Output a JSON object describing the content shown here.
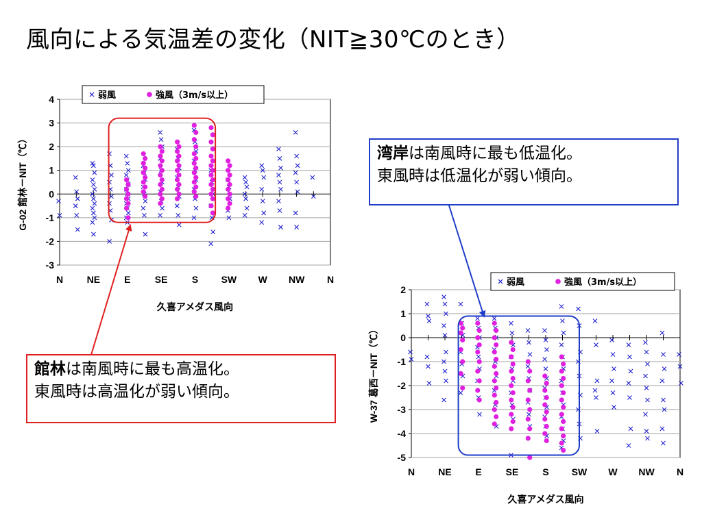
{
  "slide": {
    "title": "風向による気温差の変化（NIT≧30℃のとき）"
  },
  "callouts": {
    "tatebayashi": {
      "bold": "館林",
      "line1_rest": "は南風時に最も高温化。",
      "line2": "東風時は高温化が弱い傾向。"
    },
    "kaigan": {
      "bold": "湾岸",
      "line1_rest": "は南風時に最も低温化。",
      "line2": "東風時は低温化が弱い傾向。"
    }
  },
  "colors": {
    "weak_wind": "#1f1fd0",
    "strong_wind": "#e020e0",
    "highlight_tatebayashi": "#e02020",
    "highlight_kaigan": "#1e3cc8",
    "grid": "#a0a0a0"
  },
  "chart_data": [
    {
      "type": "scatter",
      "title": "",
      "xlabel": "久喜アメダス風向",
      "ylabel": "G-02 館林－NIT（℃）",
      "x_ticks": [
        "N",
        "NE",
        "E",
        "SE",
        "S",
        "SW",
        "W",
        "NW",
        "N"
      ],
      "ylim": [
        -3,
        4
      ],
      "y_ticks": [
        "4",
        "3",
        "2",
        "1",
        "0",
        "-1",
        "-2",
        "-3"
      ],
      "grid": true,
      "legend_position": "top",
      "highlight_region": {
        "x_from": 2.9,
        "x_to": 9.2,
        "y_from": -1.2,
        "y_to": 3.2,
        "color_key": "highlight_tatebayashi"
      },
      "series": [
        {
          "name": "弱風",
          "marker": "x",
          "color_key": "weak_wind",
          "groups": [
            {
              "x": 0.0,
              "y": [
                -0.3,
                -0.9
              ]
            },
            {
              "x": 1.0,
              "y": [
                0.7,
                0.1,
                -0.2,
                -0.5,
                -0.9,
                -1.5
              ]
            },
            {
              "x": 2.0,
              "y": [
                1.3,
                1.2,
                0.9,
                0.6,
                0.4,
                0.2,
                0.0,
                -0.2,
                -0.4,
                -0.6,
                -0.8,
                -1.0,
                -1.2,
                -1.7
              ]
            },
            {
              "x": 3.0,
              "y": [
                1.7,
                1.2,
                0.8,
                0.5,
                0.2,
                -0.1,
                -0.4,
                -0.7,
                -1.1,
                -2.0
              ]
            },
            {
              "x": 4.0,
              "y": [
                1.6,
                1.3,
                1.0,
                0.8,
                0.6,
                0.4,
                0.2,
                0.0,
                -0.2,
                -0.4,
                -0.6,
                -0.8,
                -1.0,
                -1.2
              ]
            },
            {
              "x": 5.0,
              "y": [
                1.2,
                0.9,
                0.6,
                0.3,
                0.0,
                -0.3,
                -0.6,
                -0.9,
                -1.7
              ]
            },
            {
              "x": 6.0,
              "y": [
                2.6,
                2.3,
                2.0,
                1.5,
                1.0,
                0.5,
                0.1,
                -0.3,
                -0.6,
                -0.9
              ]
            },
            {
              "x": 7.0,
              "y": [
                1.9,
                1.5,
                1.1,
                0.7,
                0.3,
                -0.1,
                -0.5,
                -0.9,
                -1.3
              ]
            },
            {
              "x": 8.0,
              "y": [
                2.7,
                2.2,
                1.8,
                1.4,
                1.0,
                0.6,
                0.2,
                -0.2,
                -0.6,
                -1.0
              ]
            },
            {
              "x": 9.0,
              "y": [
                1.0,
                0.5,
                0.0,
                -0.5,
                -1.0,
                -1.6,
                -2.1
              ]
            },
            {
              "x": 10.0,
              "y": [
                0.6,
                0.3,
                -0.2,
                -0.7,
                -1.0
              ]
            },
            {
              "x": 11.0,
              "y": [
                0.7,
                0.5,
                0.3,
                0.0,
                -0.2,
                -0.6,
                -0.9
              ]
            },
            {
              "x": 12.0,
              "y": [
                1.2,
                1.0,
                0.7,
                0.2,
                -0.3,
                -0.8,
                -1.2
              ]
            },
            {
              "x": 13.0,
              "y": [
                1.9,
                1.5,
                1.1,
                0.8,
                0.5,
                0.2,
                -0.3,
                -0.7,
                -1.4
              ]
            },
            {
              "x": 14.0,
              "y": [
                2.6,
                1.6,
                1.2,
                0.9,
                0.5,
                0.1,
                -0.8,
                -1.4
              ]
            },
            {
              "x": 15.0,
              "y": [
                0.7,
                -0.1
              ]
            }
          ]
        },
        {
          "name": "強風（3m/s以上）",
          "marker": "circle",
          "color_key": "strong_wind",
          "groups": [
            {
              "x": 4.0,
              "y": [
                0.6,
                0.4,
                0.2,
                0.0,
                -0.2,
                -0.4,
                -0.6,
                -1.0
              ]
            },
            {
              "x": 5.0,
              "y": [
                1.7,
                1.5,
                1.3,
                1.1,
                0.9,
                0.7,
                0.5,
                0.3,
                0.1,
                -0.1
              ]
            },
            {
              "x": 6.0,
              "y": [
                2.0,
                1.8,
                1.6,
                1.4,
                1.2,
                1.0,
                0.8,
                0.6,
                0.4,
                0.2,
                0.0,
                -0.2,
                -0.4
              ]
            },
            {
              "x": 7.0,
              "y": [
                2.2,
                2.0,
                1.8,
                1.6,
                1.4,
                1.2,
                1.0,
                0.8,
                0.6,
                0.4,
                0.2,
                0.0,
                -0.2
              ]
            },
            {
              "x": 8.0,
              "y": [
                2.9,
                2.6,
                2.3,
                2.0,
                1.7,
                1.5,
                1.3,
                1.1,
                0.9,
                0.7,
                0.5,
                0.3,
                0.1,
                -0.1
              ]
            },
            {
              "x": 9.0,
              "y": [
                2.8,
                2.5,
                2.2,
                1.9,
                1.6,
                1.4,
                1.2,
                1.0,
                0.8,
                0.6,
                0.4,
                0.2,
                0.0,
                -0.2,
                -0.5,
                -0.8
              ]
            },
            {
              "x": 10.0,
              "y": [
                1.4,
                1.2,
                1.0,
                0.8,
                0.6,
                0.4,
                0.2,
                0.0,
                -0.2,
                -0.4,
                -0.6
              ]
            }
          ]
        }
      ]
    },
    {
      "type": "scatter",
      "title": "",
      "xlabel": "久喜アメダス風向",
      "ylabel": "W-37 葛西－NIT（℃）",
      "x_ticks": [
        "N",
        "NE",
        "E",
        "SE",
        "S",
        "SW",
        "W",
        "NW",
        "N"
      ],
      "ylim": [
        -5,
        2
      ],
      "y_ticks": [
        "2",
        "1",
        "0",
        "-1",
        "-2",
        "-3",
        "-4",
        "-5"
      ],
      "grid": true,
      "legend_position": "top-right",
      "highlight_region": {
        "x_from": 2.8,
        "x_to": 10.0,
        "y_from": -4.9,
        "y_to": 0.9,
        "color_key": "highlight_kaigan"
      },
      "series": [
        {
          "name": "弱風",
          "marker": "x",
          "color_key": "weak_wind",
          "groups": [
            {
              "x": 0.0,
              "y": [
                -0.6,
                -0.9
              ]
            },
            {
              "x": 1.0,
              "y": [
                1.4,
                0.9,
                0.7,
                -0.8,
                -1.2,
                -1.9
              ]
            },
            {
              "x": 2.0,
              "y": [
                1.7,
                1.4,
                1.0,
                0.5,
                0.1,
                -0.6,
                -1.0,
                -1.4,
                -1.8,
                -2.6
              ]
            },
            {
              "x": 3.0,
              "y": [
                1.4,
                0.6,
                0.1,
                -0.6,
                -1.1,
                -1.6,
                -2.3
              ]
            },
            {
              "x": 4.0,
              "y": [
                0.8,
                0.4,
                0.0,
                -0.4,
                -0.8,
                -1.3,
                -1.8,
                -2.5,
                -3.2
              ]
            },
            {
              "x": 5.0,
              "y": [
                0.8,
                0.4,
                0.0,
                -0.5,
                -1.0,
                -1.6,
                -2.2,
                -2.8,
                -3.7
              ]
            },
            {
              "x": 6.0,
              "y": [
                0.6,
                0.2,
                -0.3,
                -0.8,
                -1.3,
                -1.8,
                -2.3,
                -2.8,
                -3.4,
                -4.9
              ]
            },
            {
              "x": 7.0,
              "y": [
                0.3,
                -0.2,
                -0.7,
                -1.2,
                -1.7,
                -2.2,
                -2.7,
                -3.2,
                -3.7
              ]
            },
            {
              "x": 8.0,
              "y": [
                0.3,
                -0.1,
                -0.5,
                -0.9,
                -1.3,
                -1.7,
                -2.1,
                -2.5,
                -2.9,
                -3.3,
                -3.7,
                -4.1
              ]
            },
            {
              "x": 9.0,
              "y": [
                1.3,
                0.7,
                0.2,
                -0.3,
                -0.8,
                -1.3,
                -1.8,
                -2.3,
                -2.8,
                -3.3,
                -3.8,
                -4.3,
                -4.6
              ]
            },
            {
              "x": 10.0,
              "y": [
                1.2,
                0.5,
                -0.6,
                -1.0,
                -1.6,
                -2.4,
                -3.0,
                -3.6,
                -4.2
              ]
            },
            {
              "x": 11.0,
              "y": [
                0.7,
                -0.3,
                -1.8,
                -2.2,
                -2.5,
                -3.9
              ]
            },
            {
              "x": 12.0,
              "y": [
                -0.1,
                -0.7,
                -1.3,
                -1.8,
                -2.3,
                -2.9
              ]
            },
            {
              "x": 13.0,
              "y": [
                -0.3,
                -0.8,
                -1.4,
                -1.9,
                -2.5,
                -3.8,
                -4.5
              ]
            },
            {
              "x": 14.0,
              "y": [
                -0.2,
                -0.6,
                -1.1,
                -1.6,
                -2.1,
                -2.6,
                -3.2,
                -3.9,
                -4.2
              ]
            },
            {
              "x": 15.0,
              "y": [
                0.2,
                -0.7,
                -1.3,
                -1.8,
                -2.6,
                -3.0,
                -3.8,
                -4.4
              ]
            },
            {
              "x": 16.0,
              "y": [
                -0.7,
                -1.2,
                -1.9
              ]
            }
          ]
        },
        {
          "name": "強風（3m/s以上）",
          "marker": "circle",
          "color_key": "strong_wind",
          "groups": [
            {
              "x": 3.0,
              "y": [
                0.6,
                0.4,
                0.2,
                -0.1,
                -0.5,
                -1.0,
                -1.5,
                -2.1
              ]
            },
            {
              "x": 4.0,
              "y": [
                0.6,
                0.3,
                0.0,
                -0.3,
                -0.6,
                -1.0,
                -1.4,
                -1.8,
                -2.2,
                -2.6
              ]
            },
            {
              "x": 5.0,
              "y": [
                0.6,
                0.3,
                0.0,
                -0.3,
                -0.6,
                -0.9,
                -1.2,
                -1.5,
                -1.8,
                -2.1,
                -2.4,
                -2.7,
                -3.0,
                -3.3,
                -3.6
              ]
            },
            {
              "x": 6.0,
              "y": [
                -0.2,
                -0.5,
                -0.8,
                -1.1,
                -1.4,
                -1.7,
                -2.0,
                -2.3,
                -2.6,
                -2.9,
                -3.2,
                -3.5,
                -3.8
              ]
            },
            {
              "x": 7.0,
              "y": [
                -1.0,
                -1.4,
                -1.8,
                -2.2,
                -2.6,
                -3.0,
                -3.4,
                -3.8,
                -4.2,
                -5.0
              ]
            },
            {
              "x": 8.0,
              "y": [
                -1.6,
                -1.9,
                -2.2,
                -2.5,
                -2.8,
                -3.1,
                -3.4,
                -3.7,
                -4.0,
                -4.3
              ]
            },
            {
              "x": 9.0,
              "y": [
                -0.8,
                -1.1,
                -1.4,
                -1.7,
                -2.0,
                -2.3,
                -2.6,
                -2.9,
                -3.2,
                -3.5,
                -3.8,
                -4.1,
                -4.4,
                -4.7
              ]
            }
          ]
        }
      ]
    }
  ]
}
